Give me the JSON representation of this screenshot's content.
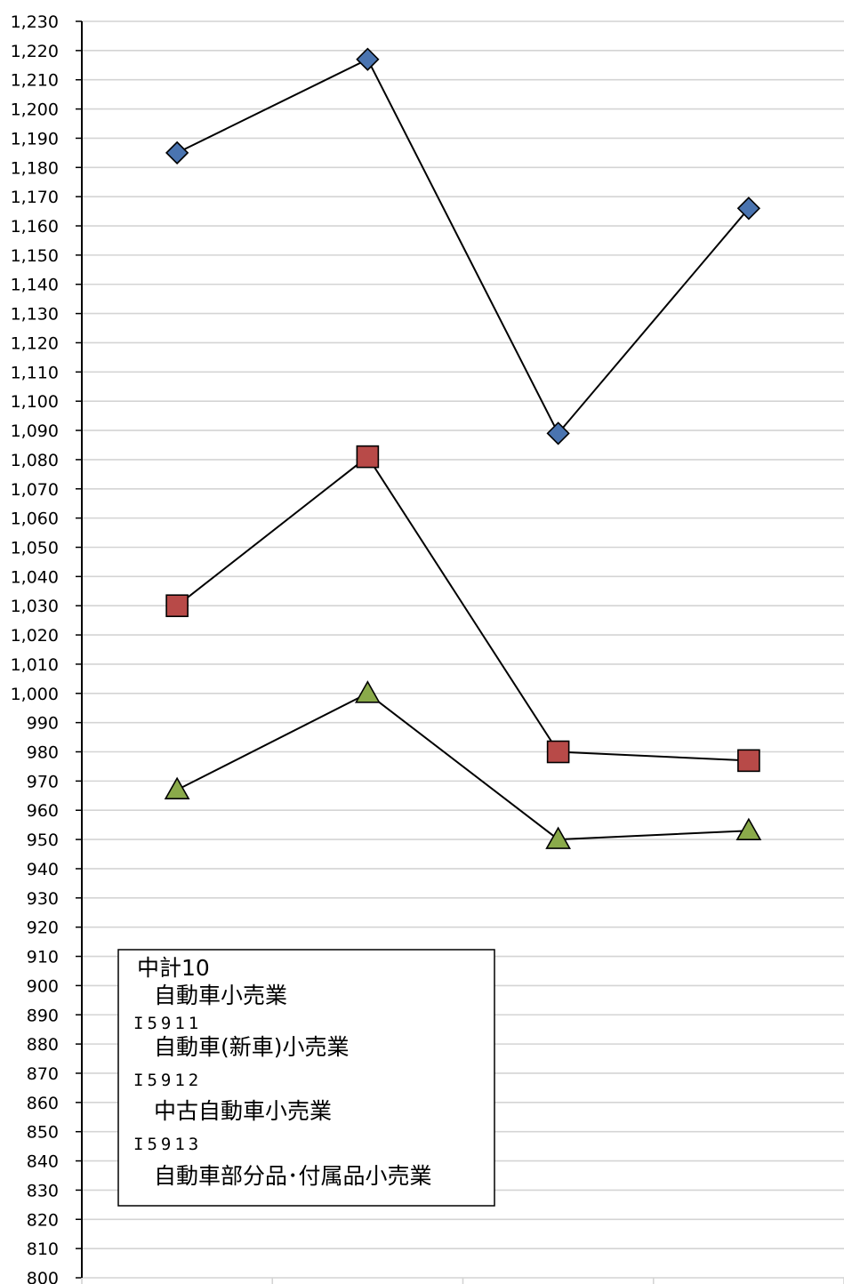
{
  "chart_data": {
    "type": "line",
    "title": "",
    "xlabel": "",
    "ylabel": "",
    "ylim": [
      800,
      1230
    ],
    "ytick_step": 10,
    "grid": true,
    "categories": [
      "",
      "",
      "",
      ""
    ],
    "series": [
      {
        "name": "自動車小売業",
        "values": [
          1185,
          1217,
          1089,
          1166
        ],
        "marker": "diamond",
        "color": "#4a74b0"
      },
      {
        "name": "自動車（新車）小売業",
        "values": [
          1030,
          1081,
          980,
          977
        ],
        "marker": "square",
        "color": "#b84a48"
      },
      {
        "name": "中古自動車小売業",
        "values": [
          967,
          1000,
          950,
          953
        ],
        "marker": "triangle",
        "color": "#8aaa4a"
      }
    ]
  },
  "legend": {
    "position": "bottom-left",
    "lines": [
      {
        "text": "中計10",
        "style": "text",
        "indent": false
      },
      {
        "text": "自動車小売業",
        "style": "text",
        "indent": true
      },
      {
        "text": "I5911",
        "style": "code",
        "indent": false
      },
      {
        "text": "自動車(新車)小売業",
        "style": "text",
        "indent": true
      },
      {
        "text": "I5912",
        "style": "code",
        "indent": false
      },
      {
        "text": "中古自動車小売業",
        "style": "text",
        "indent": true
      },
      {
        "text": "I5913",
        "style": "code",
        "indent": false
      },
      {
        "text": "自動車部分品･付属品小売業",
        "style": "text",
        "indent": true
      }
    ]
  }
}
